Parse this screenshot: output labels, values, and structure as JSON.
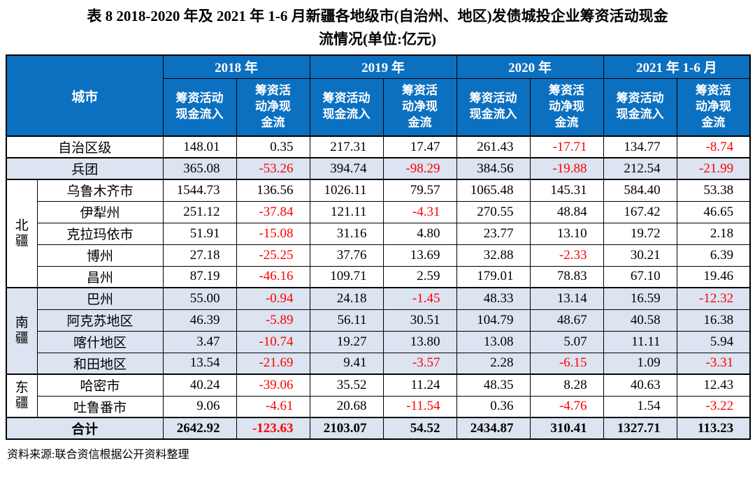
{
  "title": {
    "line1": "表 8 2018-2020 年及 2021 年 1-6 月新疆各地级市(自治州、地区)发债城投企业筹资活动现金",
    "line2": "流情况(单位:亿元)"
  },
  "source": "资料来源:联合资信根据公开资料整理",
  "colors": {
    "header_bg": "#0c70c0",
    "header_text": "#ffffff",
    "row_shade": "#dbe4f0",
    "negative_text": "#ff0000",
    "border": "#000000"
  },
  "table": {
    "city_header": "城市",
    "year_groups": [
      {
        "label": "2018 年",
        "inflow": "筹资活动\n现金流入",
        "net": "筹资活\n动净现\n金流"
      },
      {
        "label": "2019 年",
        "inflow": "筹资活动\n现金流入",
        "net": "筹资活\n动净现\n金流"
      },
      {
        "label": "2020 年",
        "inflow": "筹资活动\n现金流入",
        "net": "筹资活\n动净现\n金流"
      },
      {
        "label": "2021 年 1-6 月",
        "inflow": "筹资活动\n现金流入",
        "net": "筹资活\n动净现\n金流"
      }
    ],
    "rows": [
      {
        "city": "自治区级",
        "full": true,
        "sect": true,
        "values": [
          "148.01",
          "0.35",
          "217.31",
          "17.47",
          "261.43",
          "-17.71",
          "134.77",
          "-8.74"
        ]
      },
      {
        "city": "兵团",
        "full": true,
        "shade": true,
        "sect": true,
        "values": [
          "365.08",
          "-53.26",
          "394.74",
          "-98.29",
          "384.56",
          "-19.88",
          "212.54",
          "-21.99"
        ]
      },
      {
        "region": {
          "label": "北\n疆",
          "span": 5
        },
        "city": "乌鲁木齐市",
        "sect": true,
        "values": [
          "1544.73",
          "136.56",
          "1026.11",
          "79.57",
          "1065.48",
          "145.31",
          "584.40",
          "53.38"
        ]
      },
      {
        "city": "伊犁州",
        "values": [
          "251.12",
          "-37.84",
          "121.11",
          "-4.31",
          "270.55",
          "48.84",
          "167.42",
          "46.65"
        ]
      },
      {
        "city": "克拉玛依市",
        "values": [
          "51.91",
          "-15.08",
          "31.16",
          "4.80",
          "23.77",
          "13.10",
          "19.72",
          "2.18"
        ]
      },
      {
        "city": "博州",
        "values": [
          "27.18",
          "-25.25",
          "37.76",
          "13.69",
          "32.88",
          "-2.33",
          "30.21",
          "6.39"
        ]
      },
      {
        "city": "昌州",
        "values": [
          "87.19",
          "-46.16",
          "109.71",
          "2.59",
          "179.01",
          "78.83",
          "67.10",
          "19.46"
        ]
      },
      {
        "region": {
          "label": "南\n疆",
          "span": 4
        },
        "city": "巴州",
        "shade": true,
        "sect": true,
        "values": [
          "55.00",
          "-0.94",
          "24.18",
          "-1.45",
          "48.33",
          "13.14",
          "16.59",
          "-12.32"
        ]
      },
      {
        "city": "阿克苏地区",
        "shade": true,
        "values": [
          "46.39",
          "-5.89",
          "56.11",
          "30.51",
          "104.79",
          "48.67",
          "40.58",
          "16.38"
        ]
      },
      {
        "city": "喀什地区",
        "shade": true,
        "values": [
          "3.47",
          "-10.74",
          "19.27",
          "13.80",
          "13.08",
          "5.07",
          "11.11",
          "5.94"
        ]
      },
      {
        "city": "和田地区",
        "shade": true,
        "values": [
          "13.54",
          "-21.69",
          "9.41",
          "-3.57",
          "2.28",
          "-6.15",
          "1.09",
          "-3.31"
        ]
      },
      {
        "region": {
          "label": "东\n疆",
          "span": 2
        },
        "city": "哈密市",
        "sect": true,
        "values": [
          "40.24",
          "-39.06",
          "35.52",
          "11.24",
          "48.35",
          "8.28",
          "40.63",
          "12.43"
        ]
      },
      {
        "city": "吐鲁番市",
        "values": [
          "9.06",
          "-4.61",
          "20.68",
          "-11.54",
          "0.36",
          "-4.76",
          "1.54",
          "-3.22"
        ]
      },
      {
        "city": "合计",
        "full": true,
        "shade": true,
        "sect": true,
        "bold": true,
        "values": [
          "2642.92",
          "-123.63",
          "2103.07",
          "54.52",
          "2434.87",
          "310.41",
          "1327.71",
          "113.23"
        ]
      }
    ]
  }
}
